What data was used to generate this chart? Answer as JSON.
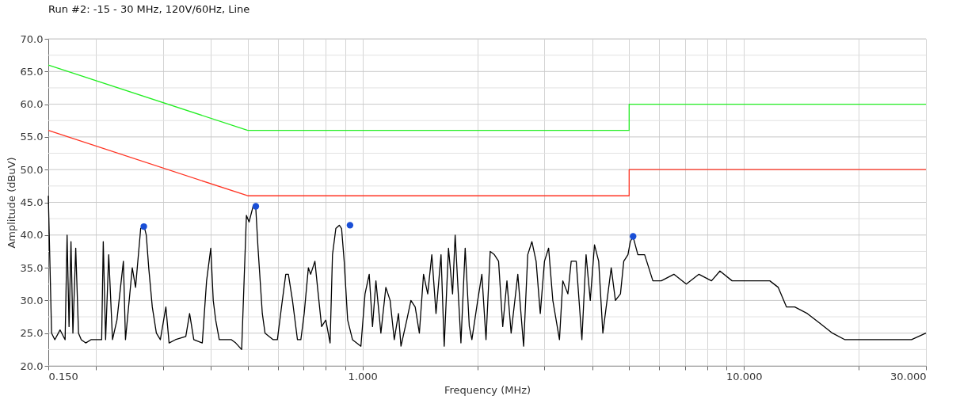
{
  "chart_data": {
    "type": "line",
    "title": "Run #2: -15 - 30 MHz, 120V/60Hz, Line",
    "xlabel": "Frequency (MHz)",
    "ylabel": "Amplitude (dBuV)",
    "log": "x",
    "grid": true,
    "marker": "none",
    "line_style": "solid",
    "xlim": [
      0.15,
      30
    ],
    "ylim": [
      20,
      70
    ],
    "xticks": [
      {
        "value": 0.15,
        "label": "0.150"
      },
      {
        "value": 0.2,
        "label": null
      },
      {
        "value": 0.3,
        "label": null
      },
      {
        "value": 0.4,
        "label": null
      },
      {
        "value": 0.5,
        "label": null
      },
      {
        "value": 0.6,
        "label": null
      },
      {
        "value": 0.7,
        "label": null
      },
      {
        "value": 0.8,
        "label": null
      },
      {
        "value": 0.9,
        "label": null
      },
      {
        "value": 1,
        "label": "1.000"
      },
      {
        "value": 2,
        "label": null
      },
      {
        "value": 3,
        "label": null
      },
      {
        "value": 4,
        "label": null
      },
      {
        "value": 5,
        "label": null
      },
      {
        "value": 6,
        "label": null
      },
      {
        "value": 7,
        "label": null
      },
      {
        "value": 8,
        "label": null
      },
      {
        "value": 9,
        "label": null
      },
      {
        "value": 10,
        "label": "10.000"
      },
      {
        "value": 20,
        "label": null
      },
      {
        "value": 30,
        "label": "30.000"
      }
    ],
    "yticks": [
      {
        "value": 20,
        "label": "20.0"
      },
      {
        "value": 22.5,
        "label": null
      },
      {
        "value": 25,
        "label": "25.0"
      },
      {
        "value": 27.5,
        "label": null
      },
      {
        "value": 30,
        "label": "30.0"
      },
      {
        "value": 32.5,
        "label": null
      },
      {
        "value": 35,
        "label": "35.0"
      },
      {
        "value": 37.5,
        "label": null
      },
      {
        "value": 40,
        "label": "40.0"
      },
      {
        "value": 42.5,
        "label": null
      },
      {
        "value": 45,
        "label": "45.0"
      },
      {
        "value": 47.5,
        "label": null
      },
      {
        "value": 50,
        "label": "50.0"
      },
      {
        "value": 52.5,
        "label": null
      },
      {
        "value": 55,
        "label": "55.0"
      },
      {
        "value": 57.5,
        "label": null
      },
      {
        "value": 60,
        "label": "60.0"
      },
      {
        "value": 62.5,
        "label": null
      },
      {
        "value": 65,
        "label": "65.0"
      },
      {
        "value": 67.5,
        "label": null
      },
      {
        "value": 70,
        "label": "70.0"
      }
    ],
    "series": [
      {
        "color": "#22ee22",
        "x": [
          0.15,
          0.5,
          5,
          5,
          30
        ],
        "values": [
          66,
          56,
          56,
          60,
          60
        ]
      },
      {
        "color": "#ff3322",
        "x": [
          0.15,
          0.5,
          5,
          5,
          30
        ],
        "values": [
          56,
          46,
          46,
          50,
          50
        ]
      },
      {
        "color": "#000000",
        "x": [
          0.15,
          0.153,
          0.156,
          0.161,
          0.166,
          0.168,
          0.17,
          0.172,
          0.174,
          0.177,
          0.18,
          0.183,
          0.188,
          0.194,
          0.207,
          0.209,
          0.212,
          0.216,
          0.221,
          0.227,
          0.236,
          0.239,
          0.249,
          0.254,
          0.262,
          0.267,
          0.271,
          0.275,
          0.281,
          0.288,
          0.295,
          0.305,
          0.311,
          0.323,
          0.344,
          0.352,
          0.361,
          0.38,
          0.39,
          0.4,
          0.406,
          0.412,
          0.421,
          0.442,
          0.453,
          0.465,
          0.482,
          0.496,
          0.504,
          0.517,
          0.525,
          0.532,
          0.546,
          0.555,
          0.583,
          0.598,
          0.613,
          0.629,
          0.639,
          0.655,
          0.675,
          0.689,
          0.703,
          0.721,
          0.731,
          0.75,
          0.762,
          0.781,
          0.801,
          0.822,
          0.834,
          0.851,
          0.869,
          0.881,
          0.895,
          0.914,
          0.941,
          0.99,
          1.015,
          1.041,
          1.062,
          1.084,
          1.117,
          1.151,
          1.181,
          1.211,
          1.242,
          1.261,
          1.306,
          1.339,
          1.374,
          1.409,
          1.445,
          1.482,
          1.519,
          1.558,
          1.606,
          1.637,
          1.68,
          1.722,
          1.749,
          1.811,
          1.858,
          1.905,
          1.935,
          2.004,
          2.055,
          2.107,
          2.161,
          2.216,
          2.273,
          2.331,
          2.391,
          2.452,
          2.553,
          2.644,
          2.711,
          2.78,
          2.851,
          2.924,
          2.999,
          3.075,
          3.154,
          3.283,
          3.35,
          3.454,
          3.524,
          3.632,
          3.759,
          3.855,
          3.954,
          4.056,
          4.16,
          4.266,
          4.487,
          4.602,
          4.744,
          4.84,
          4.964,
          5.036,
          5.117,
          5.27,
          5.49,
          5.77,
          6.07,
          6.55,
          7.06,
          7.62,
          8.22,
          8.65,
          9.31,
          10.05,
          10.84,
          11.69,
          12.3,
          12.93,
          13.59,
          14.66,
          15.82,
          17.06,
          18.4,
          20.35,
          22.5,
          24.9,
          27.5,
          30.0
        ],
        "values": [
          46,
          25,
          24,
          25.5,
          24,
          40,
          26,
          39,
          25,
          38,
          25,
          24,
          23.5,
          24,
          24,
          39,
          24,
          37,
          24,
          27,
          36,
          24,
          35,
          32,
          41,
          41.5,
          40,
          35,
          29,
          25,
          24,
          29,
          23.5,
          24,
          24.5,
          28,
          24,
          23.5,
          33,
          38,
          30,
          27,
          24,
          24,
          24,
          23.5,
          22.5,
          43,
          42,
          44.5,
          44,
          38,
          28,
          25,
          24,
          24,
          29,
          34,
          34,
          30,
          24,
          24,
          28,
          35,
          34,
          36,
          32,
          26,
          27,
          23.5,
          37,
          41,
          41.5,
          41,
          36,
          27,
          24,
          23,
          31,
          34,
          26,
          33,
          25,
          32,
          30,
          24,
          28,
          23,
          27,
          30,
          29,
          25,
          34,
          31,
          37,
          28,
          37,
          23,
          38,
          31,
          40,
          23.5,
          38,
          26,
          24,
          30,
          34,
          24,
          37.5,
          37,
          36,
          26,
          33,
          25,
          34,
          23,
          37,
          39,
          36,
          28,
          36,
          38,
          30,
          24,
          33,
          31,
          36,
          36,
          24,
          37,
          30,
          38.5,
          36,
          25,
          35,
          30,
          31,
          36,
          37,
          39,
          39.8,
          37,
          37,
          33,
          33,
          34,
          32.5,
          34,
          33,
          34.5,
          33,
          33,
          33,
          33,
          32,
          29,
          29,
          28,
          26.5,
          25,
          24,
          24,
          24,
          24,
          24,
          25
        ]
      },
      {
        "type": "scatter",
        "marker": "circle",
        "color": "#1a4fd6",
        "x": [
          0.267,
          0.525,
          0.927,
          5.12
        ],
        "values": [
          41.3,
          44.4,
          41.5,
          39.8
        ]
      }
    ]
  }
}
